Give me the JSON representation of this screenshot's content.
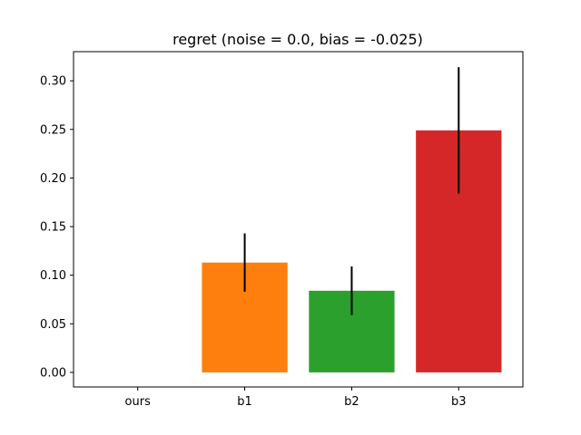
{
  "chart_data": {
    "type": "bar",
    "title": "regret (noise = 0.0, bias = -0.025)",
    "xlabel": "",
    "ylabel": "",
    "categories": [
      "ours",
      "b1",
      "b2",
      "b3"
    ],
    "values": [
      0.0,
      0.113,
      0.084,
      0.249
    ],
    "errors": [
      0.0,
      0.03,
      0.025,
      0.065
    ],
    "colors": [
      "#1f77b4",
      "#ff7f0e",
      "#2ca02c",
      "#d62728"
    ],
    "error_color": "#000000",
    "ylim": [
      -0.015,
      0.33
    ],
    "yticks": [
      0.0,
      0.05,
      0.1,
      0.15,
      0.2,
      0.25,
      0.3
    ],
    "ytick_labels": [
      "0.00",
      "0.05",
      "0.10",
      "0.15",
      "0.20",
      "0.25",
      "0.30"
    ],
    "grid": false,
    "legend": "none"
  }
}
